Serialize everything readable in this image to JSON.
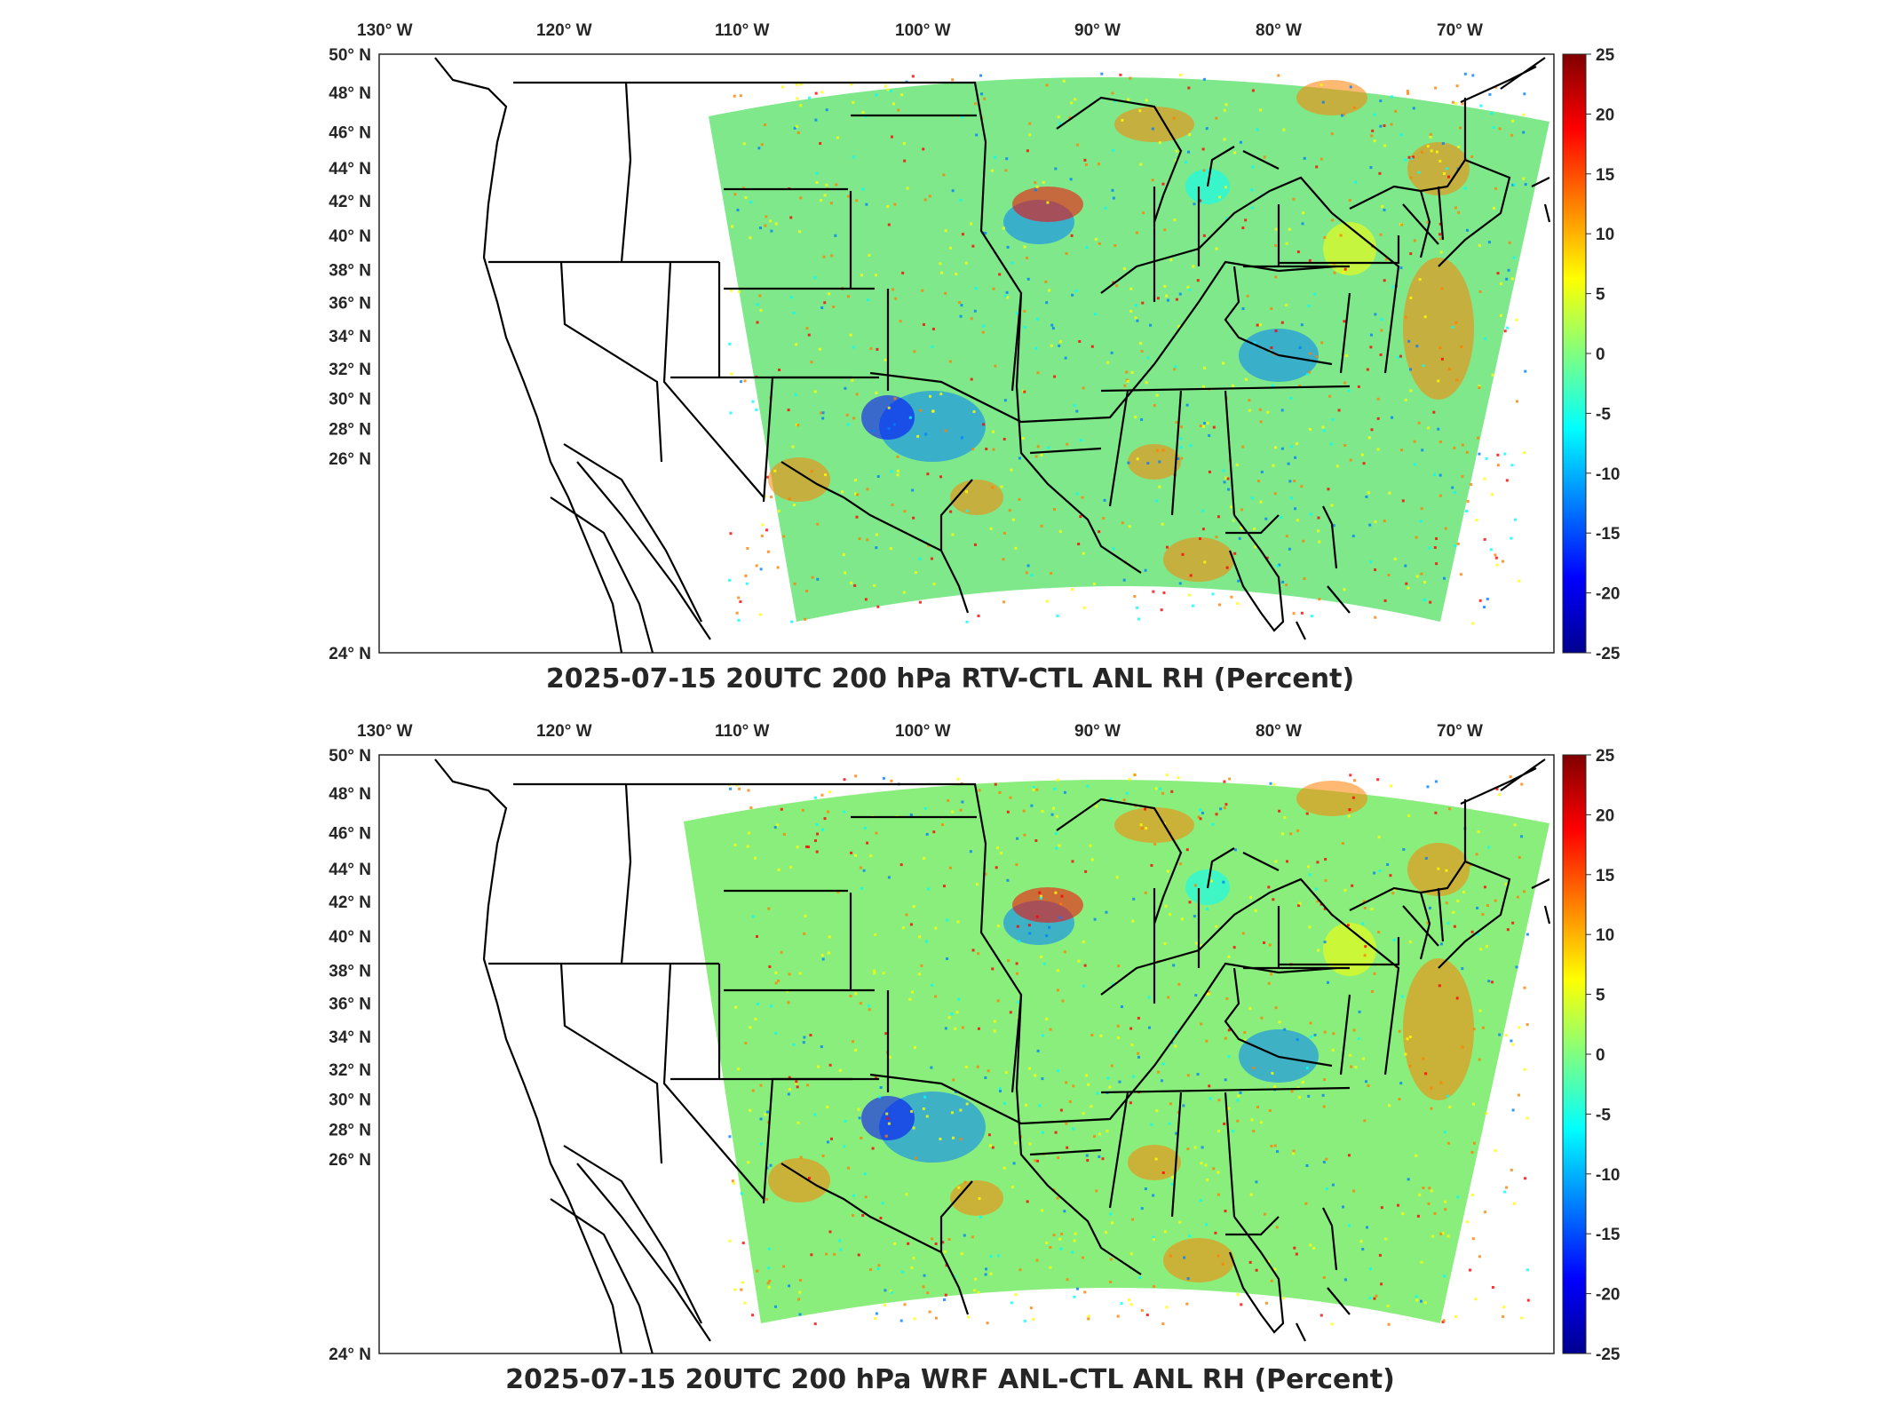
{
  "panels": [
    {
      "title": "2025-07-15 20UTC 200 hPa RTV-CTL ANL RH (Percent)",
      "lon_ticks": [
        "130° W",
        "120° W",
        "110° W",
        "100° W",
        "90° W",
        "80° W",
        "70° W"
      ],
      "lat_ticks": [
        "50° N",
        "48° N",
        "46° N",
        "44° N",
        "42° N",
        "40° N",
        "38° N",
        "36° N",
        "34° N",
        "32° N",
        "30° N",
        "28° N",
        "26° N",
        "24° N"
      ],
      "colorbar_ticks": [
        "25",
        "20",
        "15",
        "10",
        "5",
        "0",
        "-5",
        "-10",
        "-15",
        "-20",
        "-25"
      ]
    },
    {
      "title": "2025-07-15 20UTC 200 hPa WRF ANL-CTL ANL RH (Percent)",
      "lon_ticks": [
        "130° W",
        "120° W",
        "110° W",
        "100° W",
        "90° W",
        "80° W",
        "70° W"
      ],
      "lat_ticks": [
        "50° N",
        "48° N",
        "46° N",
        "44° N",
        "42° N",
        "40° N",
        "38° N",
        "36° N",
        "34° N",
        "32° N",
        "30° N",
        "28° N",
        "26° N",
        "24° N"
      ],
      "colorbar_ticks": [
        "25",
        "20",
        "15",
        "10",
        "5",
        "0",
        "-5",
        "-10",
        "-15",
        "-20",
        "-25"
      ]
    }
  ],
  "colormap": [
    "#00008f",
    "#0000ff",
    "#0080ff",
    "#00ffff",
    "#80ff80",
    "#ffff00",
    "#ff8000",
    "#ff0000",
    "#800000"
  ],
  "field_base_color": "#7fe88a"
}
